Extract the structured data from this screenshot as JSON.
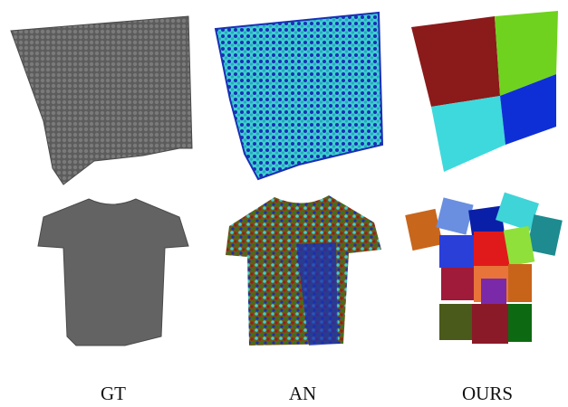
{
  "captions": {
    "gt": "GT",
    "an": "AN",
    "ours": "OURS"
  },
  "palette": {
    "gt_gray": "#5f5f5f",
    "an_cyan": "#3fcfd0",
    "an_blue": "#1a2fb5",
    "ours_red": "#8b1a1a",
    "ours_green": "#6fd21f",
    "ours_cyan": "#3ed9dc",
    "ours_blue": "#0f2fd6",
    "shirt_patches": [
      "#c8661c",
      "#6a8fe0",
      "#0a1fa8",
      "#3fd4d8",
      "#1d8b8f",
      "#2a3fd8",
      "#8fe03a",
      "#e01a1a",
      "#e8743a",
      "#7a2aa8",
      "#a01a3a",
      "#c8641a",
      "#4a5a1a",
      "#8b1a28",
      "#0d6a12",
      "#3a6a1a"
    ]
  }
}
